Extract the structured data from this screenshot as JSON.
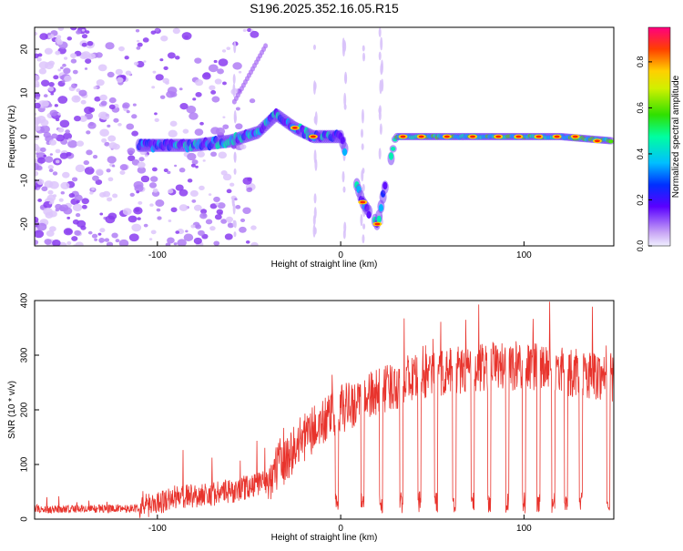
{
  "title": "S196.2025.352.16.05.R15",
  "chart_data": [
    {
      "type": "heatmap",
      "xlabel": "Height of straight line (km)",
      "ylabel": "Frequency (Hz)",
      "xlim": [
        -167,
        149
      ],
      "ylim": [
        -25,
        25
      ],
      "xticks": [
        -100,
        0,
        100
      ],
      "yticks": [
        -20,
        -10,
        0,
        10,
        20
      ],
      "colorbar": {
        "label": "Normalized spectral amplitude",
        "range": [
          0,
          0.95
        ],
        "ticks": [
          0.0,
          0.2,
          0.4,
          0.6,
          0.8
        ]
      },
      "ridge": [
        {
          "x": -100,
          "y": -2
        },
        {
          "x": -80,
          "y": -2
        },
        {
          "x": -60,
          "y": -1
        },
        {
          "x": -45,
          "y": 1
        },
        {
          "x": -35,
          "y": 5
        },
        {
          "x": -25,
          "y": 2
        },
        {
          "x": -15,
          "y": 0
        },
        {
          "x": 0,
          "y": 0
        },
        {
          "x": 12,
          "y": -15
        },
        {
          "x": 20,
          "y": -20
        },
        {
          "x": 30,
          "y": 0
        },
        {
          "x": 60,
          "y": 0
        },
        {
          "x": 90,
          "y": 0
        },
        {
          "x": 120,
          "y": 0
        },
        {
          "x": 149,
          "y": -1
        }
      ]
    },
    {
      "type": "line",
      "xlabel": "Height of straight line (km)",
      "ylabel": "SNR (10 * v/v)",
      "xlim": [
        -167,
        149
      ],
      "ylim": [
        0,
        400
      ],
      "xticks": [
        -100,
        0,
        100
      ],
      "yticks": [
        0,
        100,
        200,
        300,
        400
      ],
      "color": "#e8332c",
      "baseline": [
        {
          "x": -167,
          "y": 18
        },
        {
          "x": -110,
          "y": 20
        },
        {
          "x": -90,
          "y": 40
        },
        {
          "x": -60,
          "y": 50
        },
        {
          "x": -40,
          "y": 70
        },
        {
          "x": -20,
          "y": 150
        },
        {
          "x": 0,
          "y": 200
        },
        {
          "x": 20,
          "y": 230
        },
        {
          "x": 40,
          "y": 260
        },
        {
          "x": 60,
          "y": 270
        },
        {
          "x": 80,
          "y": 280
        },
        {
          "x": 100,
          "y": 280
        },
        {
          "x": 120,
          "y": 270
        },
        {
          "x": 149,
          "y": 260
        }
      ],
      "dropouts_x": [
        -2,
        12,
        22,
        33,
        43,
        52,
        62,
        72,
        81,
        91,
        100,
        108,
        116,
        123,
        131,
        146
      ]
    }
  ]
}
